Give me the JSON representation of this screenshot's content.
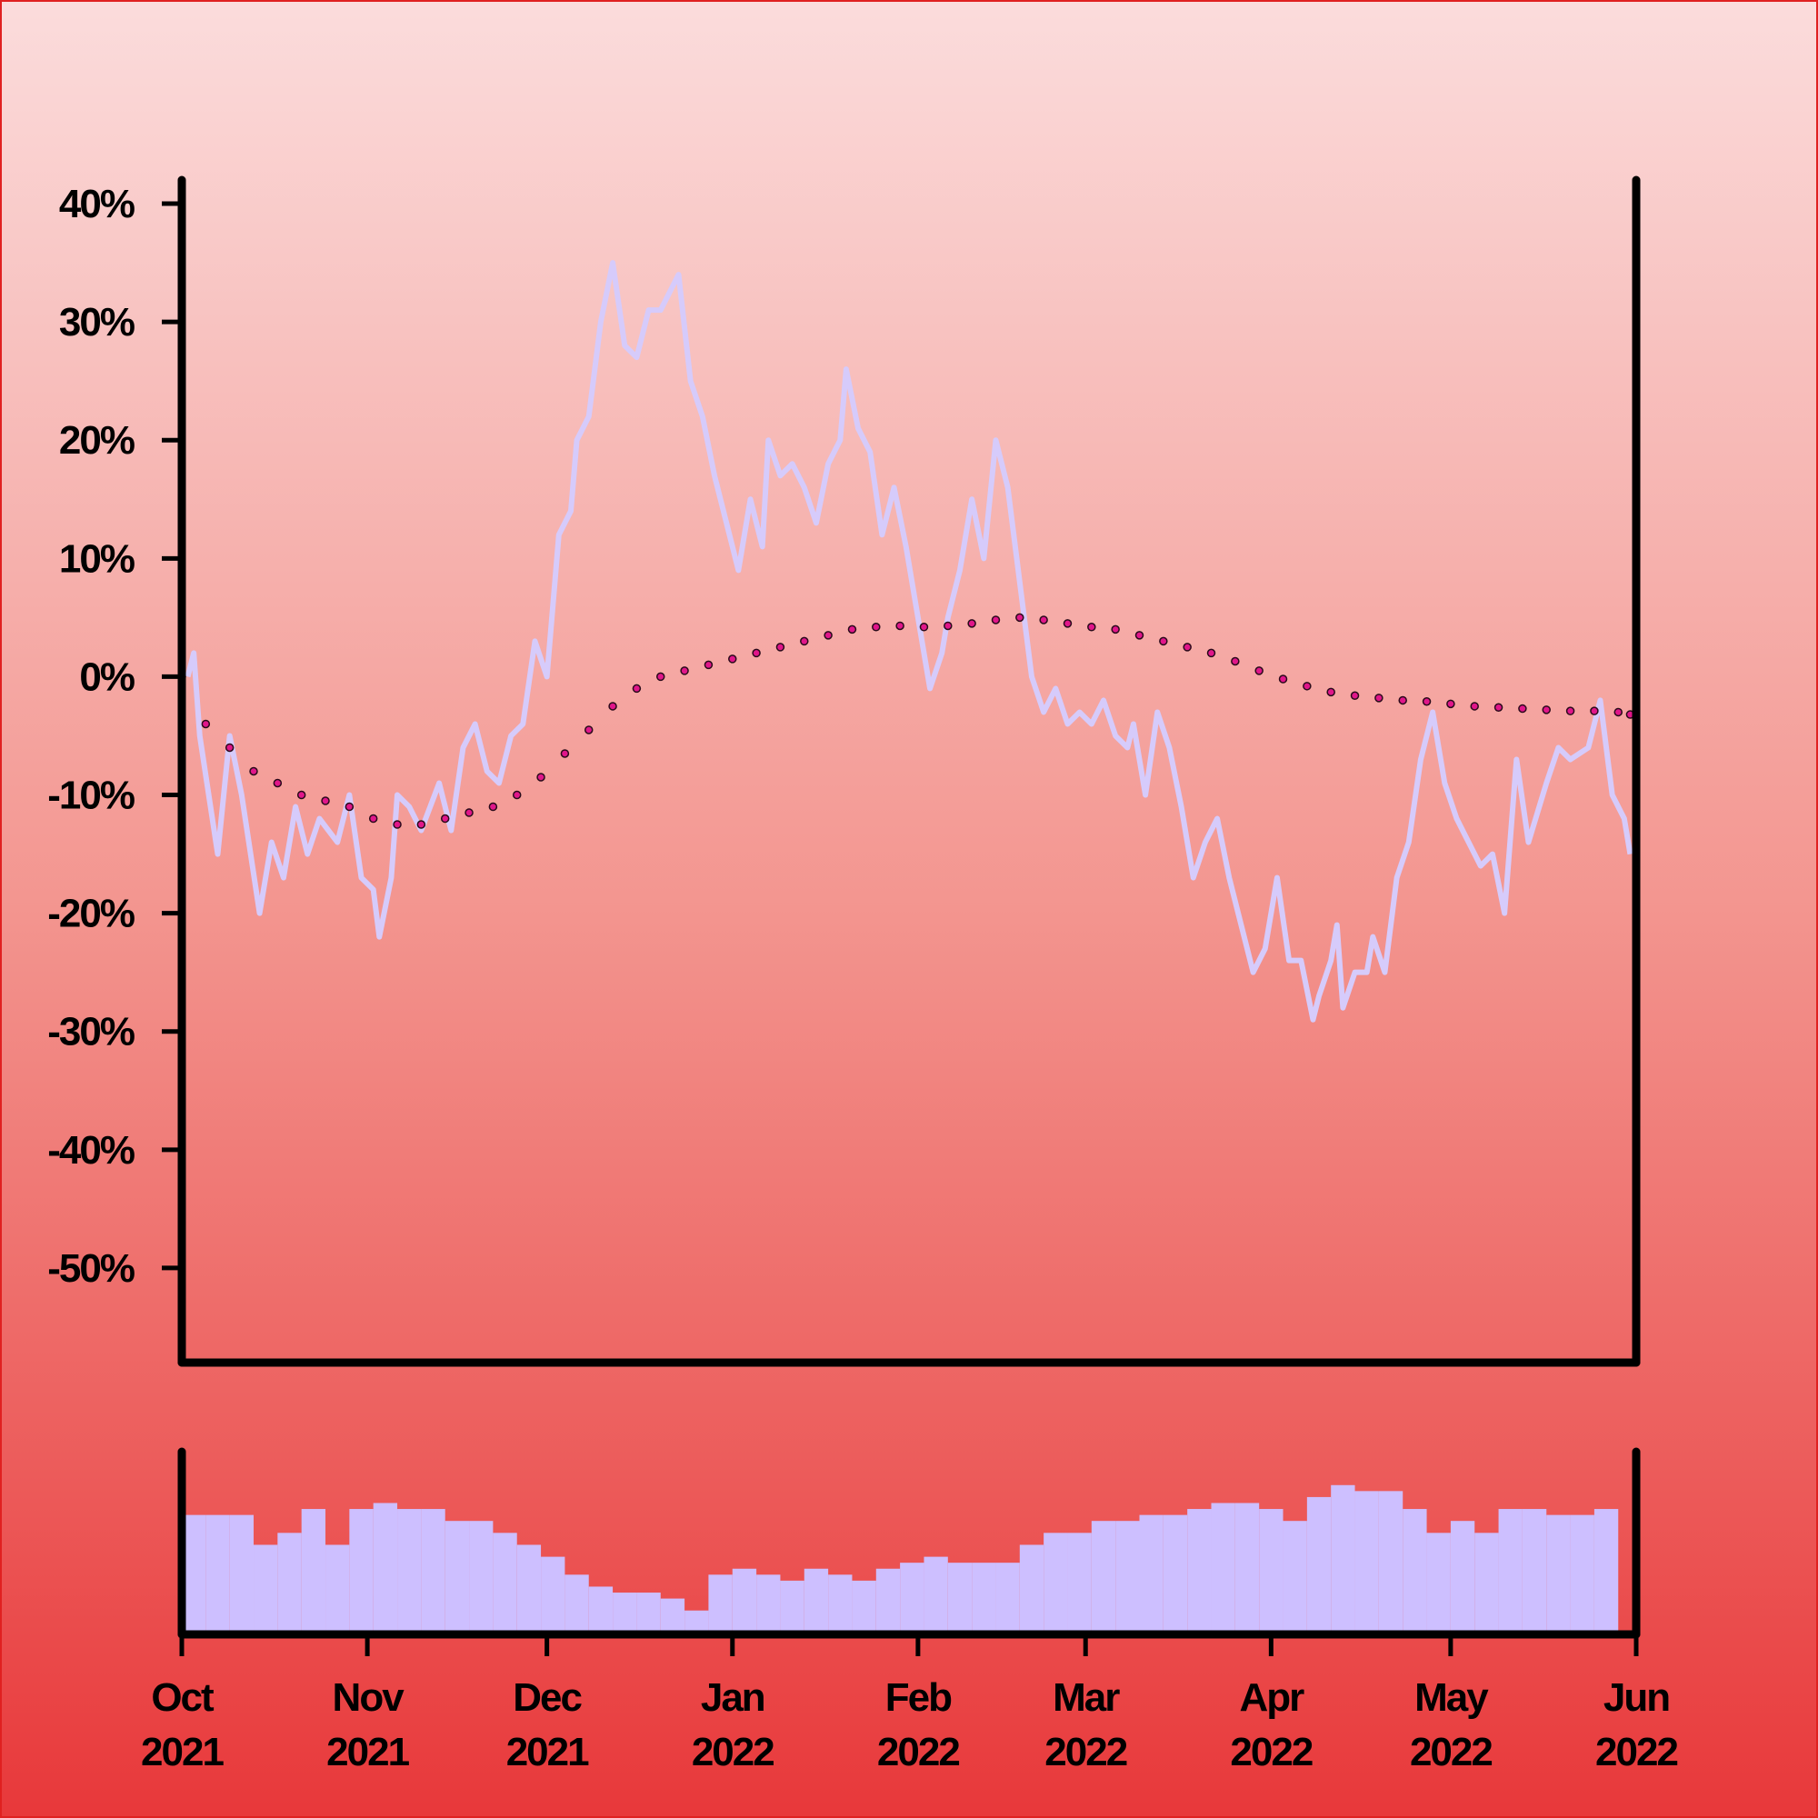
{
  "chart_data": [
    {
      "type": "line",
      "xlim": [
        0,
        243
      ],
      "ylim": [
        -58,
        42
      ],
      "yticks": [
        {
          "value": -50,
          "label": "-50%"
        },
        {
          "value": -40,
          "label": "-40%"
        },
        {
          "value": -30,
          "label": "-30%"
        },
        {
          "value": -20,
          "label": "-20%"
        },
        {
          "value": -10,
          "label": "-10%"
        },
        {
          "value": 0,
          "label": "0%"
        },
        {
          "value": 10,
          "label": "10%"
        },
        {
          "value": 20,
          "label": "20%"
        },
        {
          "value": 30,
          "label": "30%"
        },
        {
          "value": 40,
          "label": "40%"
        }
      ],
      "series": [
        {
          "style": "line",
          "color": "#d6cbfb",
          "x": [
            1,
            2,
            3,
            6,
            8,
            10,
            13,
            15,
            17,
            19,
            21,
            23,
            26,
            28,
            30,
            32,
            33,
            35,
            36,
            38,
            40,
            43,
            45,
            47,
            49,
            51,
            53,
            55,
            57,
            59,
            61,
            63,
            65,
            66,
            68,
            70,
            72,
            74,
            76,
            78,
            80,
            83,
            85,
            87,
            89,
            91,
            93,
            95,
            97,
            98,
            100,
            102,
            104,
            106,
            108,
            110,
            111,
            113,
            115,
            117,
            119,
            121,
            123,
            125,
            127,
            128,
            130,
            132,
            134,
            136,
            138,
            140,
            142,
            144,
            146,
            148,
            150,
            152,
            154,
            156,
            158,
            159,
            161,
            163,
            165,
            167,
            169,
            171,
            173,
            175,
            177,
            179,
            181,
            183,
            185,
            187,
            189,
            190,
            192,
            193,
            194,
            196,
            198,
            199,
            201,
            203,
            205,
            207,
            209,
            211,
            213,
            215,
            217,
            219,
            221,
            223,
            225,
            228,
            230,
            232,
            235,
            237,
            239,
            241,
            242
          ],
          "values": [
            0,
            2,
            -5,
            -15,
            -5,
            -10,
            -20,
            -14,
            -17,
            -11,
            -15,
            -12,
            -14,
            -10,
            -17,
            -18,
            -22,
            -17,
            -10,
            -11,
            -13,
            -9,
            -13,
            -6,
            -4,
            -8,
            -9,
            -5,
            -4,
            3,
            0,
            12,
            14,
            20,
            22,
            30,
            35,
            28,
            27,
            31,
            31,
            34,
            25,
            22,
            17,
            13,
            9,
            15,
            11,
            20,
            17,
            18,
            16,
            13,
            18,
            20,
            26,
            21,
            19,
            12,
            16,
            11,
            5,
            -1,
            2,
            5,
            9,
            15,
            10,
            20,
            16,
            8,
            0,
            -3,
            -1,
            -4,
            -3,
            -4,
            -2,
            -5,
            -6,
            -4,
            -10,
            -3,
            -6,
            -11,
            -17,
            -14,
            -12,
            -17,
            -21,
            -25,
            -23,
            -17,
            -24,
            -24,
            -29,
            -27,
            -24,
            -21,
            -28,
            -25,
            -25,
            -22,
            -25,
            -17,
            -14,
            -7,
            -3,
            -9,
            -12,
            -14,
            -16,
            -15,
            -20,
            -7,
            -14,
            -9,
            -6,
            -7,
            -6,
            -2,
            -10,
            -12,
            -15
          ]
        },
        {
          "style": "dots",
          "color": "#e0168a",
          "x": [
            0,
            4,
            8,
            12,
            16,
            20,
            24,
            28,
            32,
            36,
            40,
            44,
            48,
            52,
            56,
            60,
            64,
            68,
            72,
            76,
            80,
            84,
            88,
            92,
            96,
            100,
            104,
            108,
            112,
            116,
            120,
            124,
            128,
            132,
            136,
            140,
            144,
            148,
            152,
            156,
            160,
            164,
            168,
            172,
            176,
            180,
            184,
            188,
            192,
            196,
            200,
            204,
            208,
            212,
            216,
            220,
            224,
            228,
            232,
            236,
            240,
            242
          ],
          "values": [
            0,
            -4,
            -6,
            -8,
            -9,
            -10,
            -10.5,
            -11,
            -12,
            -12.5,
            -12.5,
            -12,
            -11.5,
            -11,
            -10,
            -8.5,
            -6.5,
            -4.5,
            -2.5,
            -1,
            0,
            0.5,
            1,
            1.5,
            2,
            2.5,
            3,
            3.5,
            4,
            4.2,
            4.3,
            4.2,
            4.3,
            4.5,
            4.8,
            5,
            4.8,
            4.5,
            4.2,
            4,
            3.5,
            3,
            2.5,
            2,
            1.3,
            0.5,
            -0.2,
            -0.8,
            -1.3,
            -1.6,
            -1.8,
            -2,
            -2.1,
            -2.3,
            -2.5,
            -2.6,
            -2.7,
            -2.8,
            -2.9,
            -2.9,
            -3,
            -3.2
          ]
        }
      ]
    },
    {
      "type": "bar",
      "color": "#cdbfff",
      "xlim": [
        0,
        243
      ],
      "ylim": [
        0,
        153
      ],
      "xticks": [
        {
          "value": 0,
          "label": "Oct\n2021"
        },
        {
          "value": 31,
          "label": "Nov\n2021"
        },
        {
          "value": 61,
          "label": "Dec\n2021"
        },
        {
          "value": 92,
          "label": "Jan\n2022"
        },
        {
          "value": 123,
          "label": "Feb\n2022"
        },
        {
          "value": 151,
          "label": "Mar\n2022"
        },
        {
          "value": 182,
          "label": "Apr\n2022"
        },
        {
          "value": 212,
          "label": "May\n2022"
        },
        {
          "value": 243,
          "label": "Jun\n2022"
        }
      ],
      "x": [
        0,
        4,
        8,
        12,
        16,
        20,
        24,
        28,
        32,
        36,
        40,
        44,
        48,
        52,
        56,
        60,
        64,
        68,
        72,
        76,
        80,
        84,
        88,
        92,
        96,
        100,
        104,
        108,
        112,
        116,
        120,
        124,
        128,
        132,
        136,
        140,
        144,
        148,
        152,
        156,
        160,
        164,
        168,
        172,
        176,
        180,
        184,
        188,
        192,
        196,
        200,
        204,
        208,
        212,
        216,
        220,
        224,
        228,
        232,
        236
      ],
      "values": [
        100,
        100,
        100,
        75,
        85,
        105,
        75,
        105,
        110,
        105,
        105,
        95,
        95,
        85,
        75,
        65,
        50,
        40,
        35,
        35,
        30,
        20,
        50,
        55,
        50,
        45,
        55,
        50,
        45,
        55,
        60,
        65,
        60,
        60,
        60,
        75,
        85,
        85,
        95,
        95,
        100,
        100,
        105,
        110,
        110,
        105,
        95,
        115,
        125,
        120,
        120,
        105,
        85,
        95,
        85,
        105,
        105,
        100,
        100,
        105
      ]
    }
  ]
}
